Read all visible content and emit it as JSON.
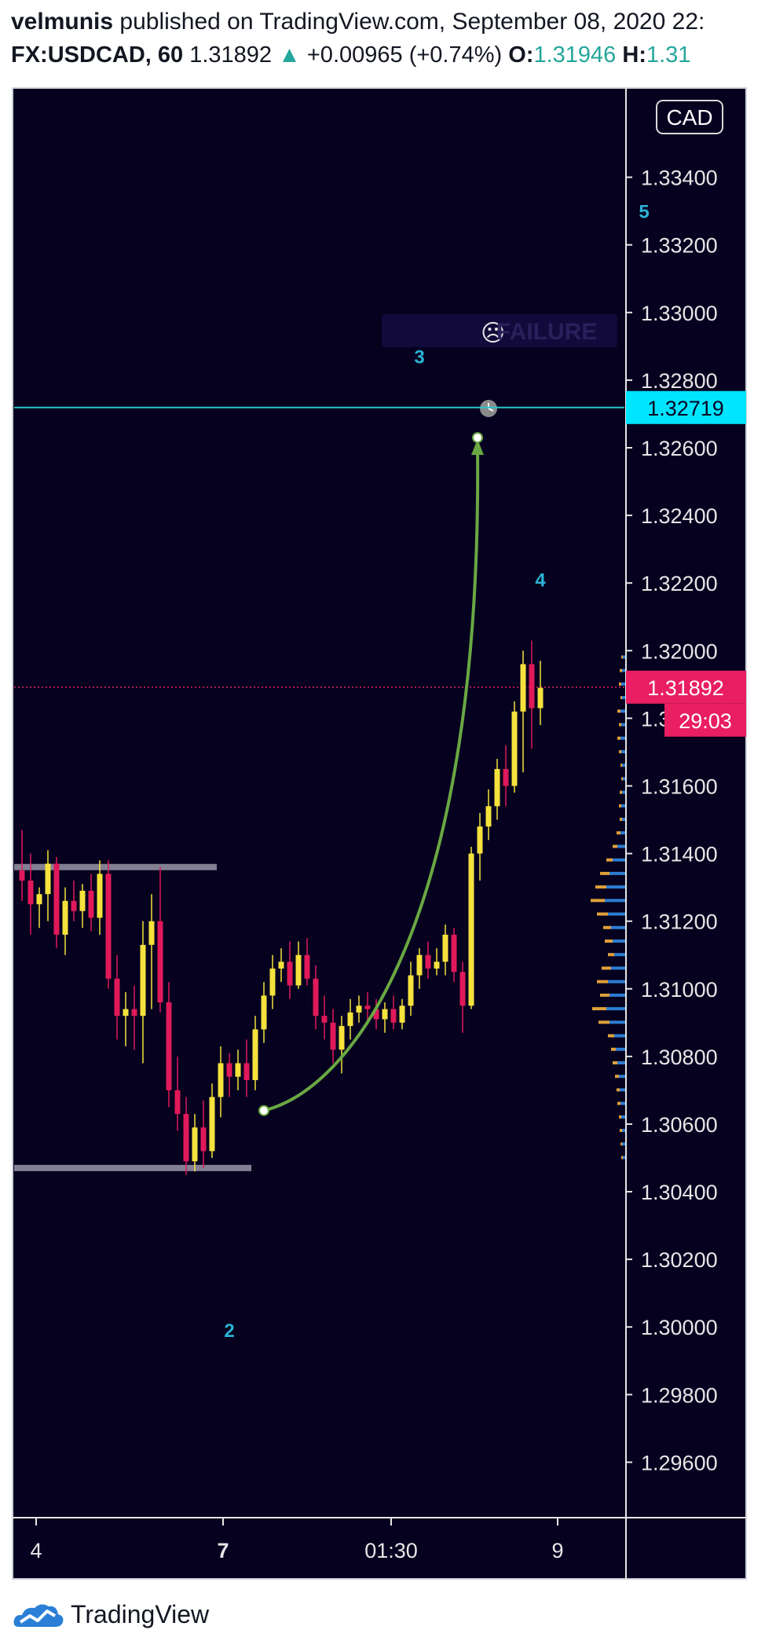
{
  "header": {
    "author": "velmunis",
    "published_text": " published on TradingView.com, September 08, 2020 22:",
    "symbol": "FX:USDCAD, 60",
    "price": "1.31892",
    "change": "+0.00965 (+0.74%)",
    "open_label": "O:",
    "open_value": "1.31946",
    "high_label": "H:",
    "high_value": "1.31"
  },
  "currency_badge": "CAD",
  "failure_label": "FAILURE",
  "footer": {
    "brand": "TradingView"
  },
  "colors": {
    "background": "#05011f",
    "bull": "#f5e23c",
    "bear": "#e0195a",
    "horizontal_line": "#29c4c6",
    "arc": "#6aa843",
    "wave_label": "#2bb3d6",
    "price_tag": "#e91e63",
    "level_tag": "#00e5ff"
  },
  "chart_data": {
    "type": "candlestick",
    "ylim": [
      1.2945,
      1.3365
    ],
    "y_ticks": [
      "1.33400",
      "1.33200",
      "1.33000",
      "1.32800",
      "1.32600",
      "1.32400",
      "1.32200",
      "1.32000",
      "1.31800",
      "1.31600",
      "1.31400",
      "1.31200",
      "1.31000",
      "1.30800",
      "1.30600",
      "1.30400",
      "1.30200",
      "1.30000",
      "1.29800",
      "1.29600"
    ],
    "x_ticks": [
      "4",
      "7",
      "01:30",
      "9"
    ],
    "last_price": {
      "value": 1.31892,
      "label": "1.31892",
      "countdown": "29:03"
    },
    "level_line": {
      "value": 1.32719,
      "label": "1.32719"
    },
    "wave_labels": [
      {
        "text": "2",
        "x": 24,
        "y": 1.2997
      },
      {
        "text": "3",
        "x": 46,
        "y": 1.3285
      },
      {
        "text": "4",
        "x": 60,
        "y": 1.3219
      },
      {
        "text": "5",
        "x": 72,
        "y": 1.3328
      }
    ],
    "support_lines": [
      {
        "from": 0,
        "to": 22,
        "y": 1.3136
      },
      {
        "from": 0,
        "to": 26,
        "y": 1.3047
      }
    ],
    "projection_arc": {
      "start": {
        "x": 28,
        "y": 1.3064
      },
      "end": {
        "x": 52,
        "y": 1.3263
      }
    },
    "candles": [
      {
        "o": 1.3135,
        "h": 1.3147,
        "l": 1.3126,
        "c": 1.3132
      },
      {
        "o": 1.3132,
        "h": 1.314,
        "l": 1.3116,
        "c": 1.3125
      },
      {
        "o": 1.3125,
        "h": 1.313,
        "l": 1.3118,
        "c": 1.3128
      },
      {
        "o": 1.3128,
        "h": 1.3141,
        "l": 1.312,
        "c": 1.3137
      },
      {
        "o": 1.3137,
        "h": 1.3139,
        "l": 1.3112,
        "c": 1.3116
      },
      {
        "o": 1.3116,
        "h": 1.313,
        "l": 1.311,
        "c": 1.3126
      },
      {
        "o": 1.3126,
        "h": 1.3132,
        "l": 1.312,
        "c": 1.3123
      },
      {
        "o": 1.3123,
        "h": 1.3131,
        "l": 1.3118,
        "c": 1.3129
      },
      {
        "o": 1.3129,
        "h": 1.3134,
        "l": 1.3117,
        "c": 1.3121
      },
      {
        "o": 1.3121,
        "h": 1.3138,
        "l": 1.3116,
        "c": 1.3134
      },
      {
        "o": 1.3134,
        "h": 1.3138,
        "l": 1.31,
        "c": 1.3103
      },
      {
        "o": 1.3103,
        "h": 1.311,
        "l": 1.3085,
        "c": 1.3092
      },
      {
        "o": 1.3092,
        "h": 1.3099,
        "l": 1.3083,
        "c": 1.3094
      },
      {
        "o": 1.3094,
        "h": 1.3101,
        "l": 1.3082,
        "c": 1.3092
      },
      {
        "o": 1.3092,
        "h": 1.312,
        "l": 1.3078,
        "c": 1.3113
      },
      {
        "o": 1.3113,
        "h": 1.3128,
        "l": 1.3094,
        "c": 1.312
      },
      {
        "o": 1.312,
        "h": 1.3136,
        "l": 1.3093,
        "c": 1.3096
      },
      {
        "o": 1.3096,
        "h": 1.3102,
        "l": 1.3065,
        "c": 1.307
      },
      {
        "o": 1.307,
        "h": 1.308,
        "l": 1.3058,
        "c": 1.3063
      },
      {
        "o": 1.3063,
        "h": 1.3068,
        "l": 1.3045,
        "c": 1.3049
      },
      {
        "o": 1.3049,
        "h": 1.3063,
        "l": 1.3046,
        "c": 1.3059
      },
      {
        "o": 1.3059,
        "h": 1.3067,
        "l": 1.3047,
        "c": 1.3052
      },
      {
        "o": 1.3052,
        "h": 1.3072,
        "l": 1.305,
        "c": 1.3068
      },
      {
        "o": 1.3068,
        "h": 1.3083,
        "l": 1.3062,
        "c": 1.3078
      },
      {
        "o": 1.3078,
        "h": 1.3081,
        "l": 1.3068,
        "c": 1.3074
      },
      {
        "o": 1.3074,
        "h": 1.3082,
        "l": 1.307,
        "c": 1.3078
      },
      {
        "o": 1.3078,
        "h": 1.3085,
        "l": 1.3068,
        "c": 1.3073
      },
      {
        "o": 1.3073,
        "h": 1.3092,
        "l": 1.307,
        "c": 1.3088
      },
      {
        "o": 1.3088,
        "h": 1.3102,
        "l": 1.3084,
        "c": 1.3098
      },
      {
        "o": 1.3098,
        "h": 1.311,
        "l": 1.3094,
        "c": 1.3106
      },
      {
        "o": 1.3106,
        "h": 1.3112,
        "l": 1.3102,
        "c": 1.3108
      },
      {
        "o": 1.3108,
        "h": 1.3114,
        "l": 1.3097,
        "c": 1.3101
      },
      {
        "o": 1.3101,
        "h": 1.3114,
        "l": 1.31,
        "c": 1.311
      },
      {
        "o": 1.311,
        "h": 1.3115,
        "l": 1.3101,
        "c": 1.3103
      },
      {
        "o": 1.3103,
        "h": 1.3107,
        "l": 1.3088,
        "c": 1.3092
      },
      {
        "o": 1.3092,
        "h": 1.3098,
        "l": 1.3085,
        "c": 1.309
      },
      {
        "o": 1.309,
        "h": 1.3094,
        "l": 1.3078,
        "c": 1.3082
      },
      {
        "o": 1.3082,
        "h": 1.3092,
        "l": 1.3075,
        "c": 1.3089
      },
      {
        "o": 1.3089,
        "h": 1.3097,
        "l": 1.3085,
        "c": 1.3093
      },
      {
        "o": 1.3093,
        "h": 1.3098,
        "l": 1.309,
        "c": 1.3095
      },
      {
        "o": 1.3095,
        "h": 1.3099,
        "l": 1.309,
        "c": 1.3094
      },
      {
        "o": 1.3094,
        "h": 1.3097,
        "l": 1.3088,
        "c": 1.3091
      },
      {
        "o": 1.3091,
        "h": 1.3096,
        "l": 1.3087,
        "c": 1.3094
      },
      {
        "o": 1.3094,
        "h": 1.3098,
        "l": 1.3088,
        "c": 1.309
      },
      {
        "o": 1.309,
        "h": 1.3097,
        "l": 1.3088,
        "c": 1.3095
      },
      {
        "o": 1.3095,
        "h": 1.3108,
        "l": 1.3092,
        "c": 1.3104
      },
      {
        "o": 1.3104,
        "h": 1.3112,
        "l": 1.31,
        "c": 1.311
      },
      {
        "o": 1.311,
        "h": 1.3114,
        "l": 1.3103,
        "c": 1.3106
      },
      {
        "o": 1.3106,
        "h": 1.3112,
        "l": 1.3104,
        "c": 1.3108
      },
      {
        "o": 1.3108,
        "h": 1.3119,
        "l": 1.3104,
        "c": 1.3116
      },
      {
        "o": 1.3116,
        "h": 1.3118,
        "l": 1.3102,
        "c": 1.3105
      },
      {
        "o": 1.3105,
        "h": 1.3108,
        "l": 1.3087,
        "c": 1.3095
      },
      {
        "o": 1.3095,
        "h": 1.3142,
        "l": 1.3094,
        "c": 1.314
      },
      {
        "o": 1.314,
        "h": 1.3152,
        "l": 1.3132,
        "c": 1.3148
      },
      {
        "o": 1.3148,
        "h": 1.3159,
        "l": 1.3144,
        "c": 1.3154
      },
      {
        "o": 1.3154,
        "h": 1.3168,
        "l": 1.315,
        "c": 1.3165
      },
      {
        "o": 1.3165,
        "h": 1.3172,
        "l": 1.3154,
        "c": 1.316
      },
      {
        "o": 1.316,
        "h": 1.3185,
        "l": 1.3158,
        "c": 1.3182
      },
      {
        "o": 1.3182,
        "h": 1.32,
        "l": 1.3164,
        "c": 1.3196
      },
      {
        "o": 1.3196,
        "h": 1.3203,
        "l": 1.3171,
        "c": 1.3183
      },
      {
        "o": 1.3183,
        "h": 1.3197,
        "l": 1.3178,
        "c": 1.3189
      }
    ],
    "volume_profile": [
      {
        "p": 1.3198,
        "u": 3,
        "d": 2
      },
      {
        "p": 1.3194,
        "u": 4,
        "d": 3
      },
      {
        "p": 1.319,
        "u": 5,
        "d": 3
      },
      {
        "p": 1.3186,
        "u": 4,
        "d": 2
      },
      {
        "p": 1.3182,
        "u": 6,
        "d": 4
      },
      {
        "p": 1.3178,
        "u": 5,
        "d": 3
      },
      {
        "p": 1.3174,
        "u": 6,
        "d": 4
      },
      {
        "p": 1.317,
        "u": 5,
        "d": 3
      },
      {
        "p": 1.3166,
        "u": 4,
        "d": 2
      },
      {
        "p": 1.3162,
        "u": 3,
        "d": 2
      },
      {
        "p": 1.3158,
        "u": 4,
        "d": 3
      },
      {
        "p": 1.3154,
        "u": 5,
        "d": 3
      },
      {
        "p": 1.315,
        "u": 4,
        "d": 3
      },
      {
        "p": 1.3146,
        "u": 6,
        "d": 5
      },
      {
        "p": 1.3142,
        "u": 10,
        "d": 6
      },
      {
        "p": 1.3138,
        "u": 16,
        "d": 8
      },
      {
        "p": 1.3134,
        "u": 20,
        "d": 12
      },
      {
        "p": 1.313,
        "u": 24,
        "d": 14
      },
      {
        "p": 1.3126,
        "u": 26,
        "d": 18
      },
      {
        "p": 1.3122,
        "u": 22,
        "d": 14
      },
      {
        "p": 1.3118,
        "u": 18,
        "d": 10
      },
      {
        "p": 1.3114,
        "u": 16,
        "d": 10
      },
      {
        "p": 1.311,
        "u": 14,
        "d": 8
      },
      {
        "p": 1.3106,
        "u": 18,
        "d": 12
      },
      {
        "p": 1.3102,
        "u": 22,
        "d": 14
      },
      {
        "p": 1.3098,
        "u": 20,
        "d": 12
      },
      {
        "p": 1.3094,
        "u": 24,
        "d": 18
      },
      {
        "p": 1.309,
        "u": 20,
        "d": 14
      },
      {
        "p": 1.3086,
        "u": 14,
        "d": 8
      },
      {
        "p": 1.3082,
        "u": 12,
        "d": 6
      },
      {
        "p": 1.3078,
        "u": 10,
        "d": 6
      },
      {
        "p": 1.3074,
        "u": 8,
        "d": 5
      },
      {
        "p": 1.307,
        "u": 7,
        "d": 4
      },
      {
        "p": 1.3066,
        "u": 6,
        "d": 4
      },
      {
        "p": 1.3062,
        "u": 5,
        "d": 3
      },
      {
        "p": 1.3058,
        "u": 4,
        "d": 3
      },
      {
        "p": 1.3054,
        "u": 4,
        "d": 2
      },
      {
        "p": 1.305,
        "u": 3,
        "d": 2
      }
    ]
  }
}
